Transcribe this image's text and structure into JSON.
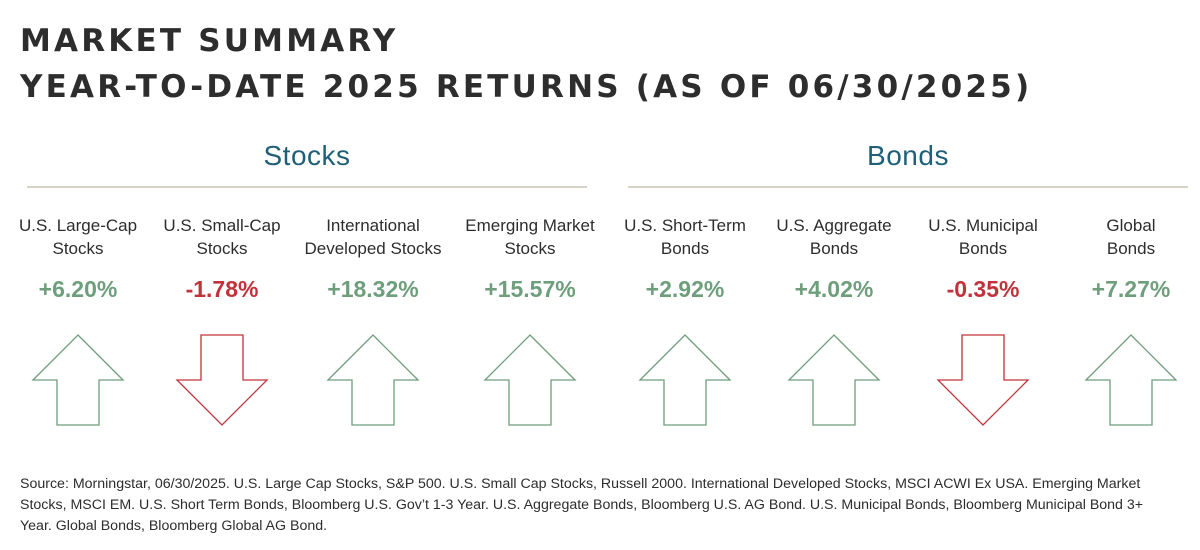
{
  "title": {
    "line1": "MARKET SUMMARY",
    "line2": "YEAR-TO-DATE 2025 RETURNS (AS OF 06/30/2025)"
  },
  "colors": {
    "positive": "#6e9e7c",
    "negative": "#c0333b",
    "section": "#1f6078",
    "rule": "#d7d2c6"
  },
  "sections": [
    {
      "name": "Stocks"
    },
    {
      "name": "Bonds"
    }
  ],
  "chart_data": {
    "type": "table",
    "title": "YEAR-TO-DATE 2025 RETURNS (AS OF 06/30/2025)",
    "unit": "%",
    "items": [
      {
        "section": "Stocks",
        "label_lines": [
          "U.S. Large-Cap",
          "Stocks"
        ],
        "value": 6.2,
        "display": "+6.20%",
        "direction": "up"
      },
      {
        "section": "Stocks",
        "label_lines": [
          "U.S. Small-Cap",
          "Stocks"
        ],
        "value": -1.78,
        "display": "-1.78%",
        "direction": "down"
      },
      {
        "section": "Stocks",
        "label_lines": [
          "International",
          "Developed Stocks"
        ],
        "value": 18.32,
        "display": "+18.32%",
        "direction": "up"
      },
      {
        "section": "Stocks",
        "label_lines": [
          "Emerging Market",
          "Stocks"
        ],
        "value": 15.57,
        "display": "+15.57%",
        "direction": "up"
      },
      {
        "section": "Bonds",
        "label_lines": [
          "U.S. Short-Term",
          "Bonds"
        ],
        "value": 2.92,
        "display": "+2.92%",
        "direction": "up"
      },
      {
        "section": "Bonds",
        "label_lines": [
          "U.S. Aggregate",
          "Bonds"
        ],
        "value": 4.02,
        "display": "+4.02%",
        "direction": "up"
      },
      {
        "section": "Bonds",
        "label_lines": [
          "U.S. Municipal",
          "Bonds"
        ],
        "value": -0.35,
        "display": "-0.35%",
        "direction": "down"
      },
      {
        "section": "Bonds",
        "label_lines": [
          "Global",
          "Bonds"
        ],
        "value": 7.27,
        "display": "+7.27%",
        "direction": "up"
      }
    ]
  },
  "source": "Source: Morningstar, 06/30/2025. U.S. Large Cap Stocks, S&P 500. U.S. Small Cap Stocks, Russell 2000. International Developed Stocks, MSCI ACWI Ex USA. Emerging Market Stocks, MSCI EM. U.S. Short Term Bonds, Bloomberg U.S. Gov’t 1-3 Year. U.S. Aggregate Bonds, Bloomberg U.S. AG Bond. U.S. Municipal Bonds, Bloomberg Municipal Bond 3+ Year. Global Bonds, Bloomberg Global AG Bond."
}
